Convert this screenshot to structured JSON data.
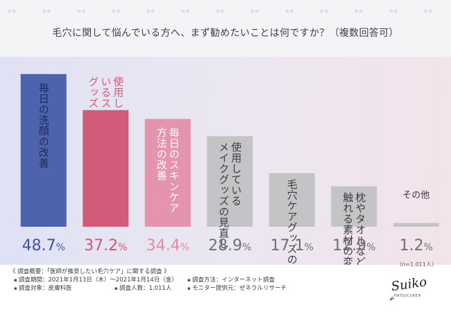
{
  "title": "毛穴に関して悩んでいる方へ、まず勧めたいことは何ですか？（複数回答可）",
  "chart_data": {
    "type": "bar",
    "ylim": [
      0,
      55
    ],
    "categories": [
      {
        "lines": [
          "毎日の洗顔の改善"
        ],
        "label_style": "inside"
      },
      {
        "lines": [
          "使用して",
          "いるスキンケア",
          "グッズの見直し"
        ],
        "label_style": "top-out"
      },
      {
        "lines": [
          "毎日のスキンケア",
          "方法の改善"
        ],
        "label_style": "inside"
      },
      {
        "lines": [
          "使用している",
          "メイクグッズの見直し"
        ],
        "label_style": "inside-dark"
      },
      {
        "lines": [
          "毛穴ケアグッズの使用"
        ],
        "label_style": "inside-dark"
      },
      {
        "lines": [
          "枕やタオルなど肌に",
          "触れる素材の変更"
        ],
        "label_style": "inside-dark"
      },
      {
        "lines": [
          "その他"
        ],
        "label_style": "above"
      }
    ],
    "values": [
      48.7,
      37.2,
      34.4,
      28.9,
      17.1,
      12.9,
      1.2
    ],
    "value_labels": [
      {
        "num": "48.7",
        "unit": "%"
      },
      {
        "num": "37.2",
        "unit": "%"
      },
      {
        "num": "34.4",
        "unit": "%"
      },
      {
        "num": "28.9",
        "unit": "%"
      },
      {
        "num": "17.1",
        "unit": "%"
      },
      {
        "num": "12.9",
        "unit": "%"
      },
      {
        "num": "1.2",
        "unit": "%"
      }
    ],
    "colors": [
      "#4d63ad",
      "#d15b78",
      "#e594ad",
      "#c4c4c7",
      "#c4c4c7",
      "#c4c4c7",
      "#c4c4c7"
    ],
    "label_colors": [
      "#1e2a55",
      "#d15b78",
      "#ffffff",
      "#3b3b40",
      "#3b3b40",
      "#3b3b40",
      "#3b3b40"
    ],
    "value_colors": [
      "#3d55a8",
      "#d35675",
      "#e48aa3",
      "#6f6f74",
      "#6f6f74",
      "#6f6f74",
      "#6f6f74"
    ]
  },
  "sample_size": "（n=1,011人）",
  "survey": {
    "heading": "《 調査概要：「医師が推奨したい毛穴ケア」に関する調査 》",
    "period": "調査期間：2021年1月13日（木）〜2021年1月14日（金）",
    "method": "調査方法：インターネット調査",
    "target": "調査対象：皮膚科医",
    "respondents": "調査人数：1,011人",
    "provider": "モニター提供元：ゼネラルリサーチ"
  },
  "logo": {
    "text": "Suiko",
    "subtext": "HATSUCURE®"
  }
}
